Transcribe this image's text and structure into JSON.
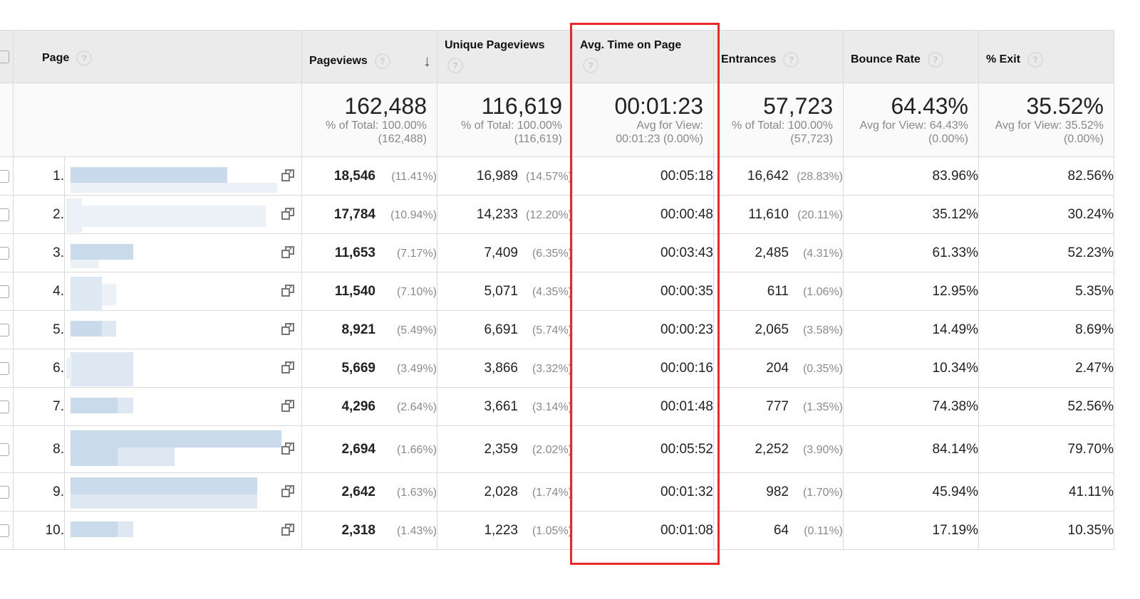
{
  "headers": {
    "page": "Page",
    "pageviews": "Pageviews",
    "unique_pageviews": "Unique Pageviews",
    "avg_time": "Avg. Time on Page",
    "entrances": "Entrances",
    "bounce_rate": "Bounce Rate",
    "exit": "% Exit",
    "help_glyph": "?",
    "sort_glyph": "↓"
  },
  "totals": {
    "pageviews": {
      "value": "162,488",
      "line1": "% of Total: 100.00%",
      "line2": "(162,488)"
    },
    "unique_pageviews": {
      "value": "116,619",
      "line1": "% of Total: 100.00%",
      "line2": "(116,619)"
    },
    "avg_time": {
      "value": "00:01:23",
      "line1": "Avg for View:",
      "line2": "00:01:23 (0.00%)"
    },
    "entrances": {
      "value": "57,723",
      "line1": "% of Total: 100.00%",
      "line2": "(57,723)"
    },
    "bounce_rate": {
      "value": "64.43%",
      "line1": "Avg for View: 64.43%",
      "line2": "(0.00%)"
    },
    "exit": {
      "value": "35.52%",
      "line1": "Avg for View: 35.52%",
      "line2": "(0.00%)"
    }
  },
  "rows": [
    {
      "idx": "1.",
      "pv": "18,546",
      "pv_pct": "(11.41%)",
      "up": "16,989",
      "up_pct": "(14.57%)",
      "time": "00:05:18",
      "en": "16,642",
      "en_pct": "(28.83%)",
      "br": "83.96%",
      "ex": "82.56%"
    },
    {
      "idx": "2.",
      "pv": "17,784",
      "pv_pct": "(10.94%)",
      "up": "14,233",
      "up_pct": "(12.20%)",
      "time": "00:00:48",
      "en": "11,610",
      "en_pct": "(20.11%)",
      "br": "35.12%",
      "ex": "30.24%"
    },
    {
      "idx": "3.",
      "pv": "11,653",
      "pv_pct": "(7.17%)",
      "up": "7,409",
      "up_pct": "(6.35%)",
      "time": "00:03:43",
      "en": "2,485",
      "en_pct": "(4.31%)",
      "br": "61.33%",
      "ex": "52.23%"
    },
    {
      "idx": "4.",
      "pv": "11,540",
      "pv_pct": "(7.10%)",
      "up": "5,071",
      "up_pct": "(4.35%)",
      "time": "00:00:35",
      "en": "611",
      "en_pct": "(1.06%)",
      "br": "12.95%",
      "ex": "5.35%"
    },
    {
      "idx": "5.",
      "pv": "8,921",
      "pv_pct": "(5.49%)",
      "up": "6,691",
      "up_pct": "(5.74%)",
      "time": "00:00:23",
      "en": "2,065",
      "en_pct": "(3.58%)",
      "br": "14.49%",
      "ex": "8.69%"
    },
    {
      "idx": "6.",
      "pv": "5,669",
      "pv_pct": "(3.49%)",
      "up": "3,866",
      "up_pct": "(3.32%)",
      "time": "00:00:16",
      "en": "204",
      "en_pct": "(0.35%)",
      "br": "10.34%",
      "ex": "2.47%"
    },
    {
      "idx": "7.",
      "pv": "4,296",
      "pv_pct": "(2.64%)",
      "up": "3,661",
      "up_pct": "(3.14%)",
      "time": "00:01:48",
      "en": "777",
      "en_pct": "(1.35%)",
      "br": "74.38%",
      "ex": "52.56%"
    },
    {
      "idx": "8.",
      "pv": "2,694",
      "pv_pct": "(1.66%)",
      "up": "2,359",
      "up_pct": "(2.02%)",
      "time": "00:05:52",
      "en": "2,252",
      "en_pct": "(3.90%)",
      "br": "84.14%",
      "ex": "79.70%"
    },
    {
      "idx": "9.",
      "pv": "2,642",
      "pv_pct": "(1.63%)",
      "up": "2,028",
      "up_pct": "(1.74%)",
      "time": "00:01:32",
      "en": "982",
      "en_pct": "(1.70%)",
      "br": "45.94%",
      "ex": "41.11%"
    },
    {
      "idx": "10.",
      "pv": "2,318",
      "pv_pct": "(1.43%)",
      "up": "1,223",
      "up_pct": "(1.05%)",
      "time": "00:01:08",
      "en": "64",
      "en_pct": "(0.11%)",
      "br": "17.19%",
      "ex": "10.35%"
    }
  ],
  "colors": {
    "highlight": "#e8292a",
    "header_bg": "#ebebeb",
    "redaction": "#c9dbeb"
  }
}
